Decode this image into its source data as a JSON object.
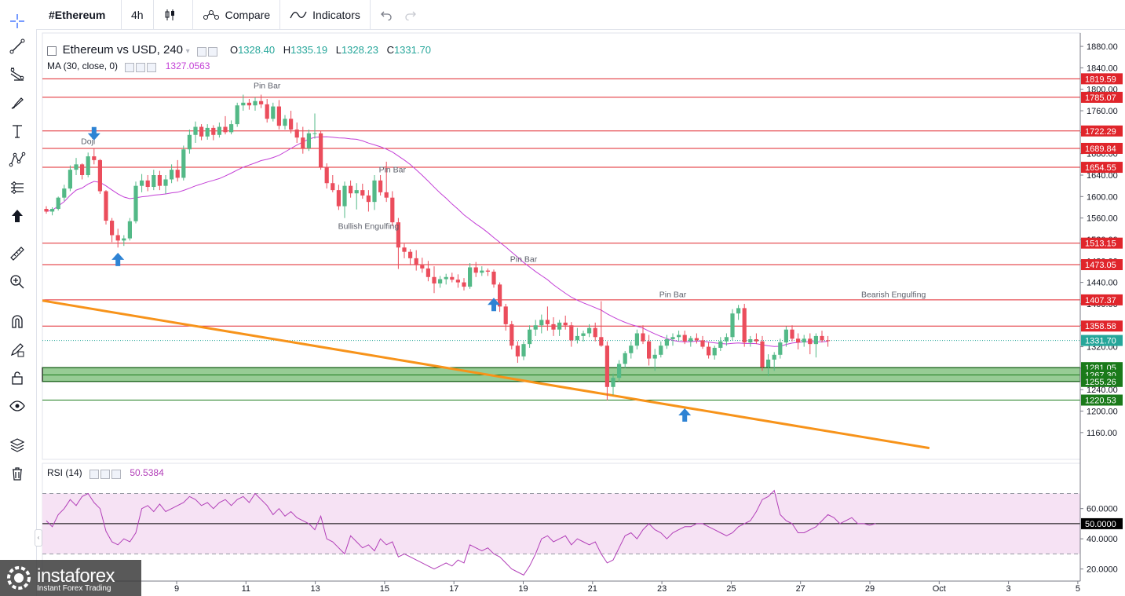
{
  "header": {
    "symbol": "#Ethereum",
    "interval": "4h",
    "compare_label": "Compare",
    "indicators_label": "Indicators"
  },
  "legend": {
    "title": "Ethereum vs USD, 240",
    "open_key": "O",
    "open": "1328.40",
    "high_key": "H",
    "high": "1335.19",
    "low_key": "L",
    "low": "1328.23",
    "close_key": "C",
    "close": "1331.70",
    "ma_label": "MA (30, close, 0)",
    "ma_value": "1327.0563",
    "rsi_label": "RSI (14)",
    "rsi_value": "50.5384"
  },
  "watermark": {
    "name": "instaforex",
    "tagline": "Instant Forex Trading"
  },
  "toolbar_icons": [
    "crosshair-icon",
    "trend-line-icon",
    "fib-icon",
    "brush-icon",
    "text-icon",
    "pattern-icon",
    "prediction-icon",
    "arrow-up-icon",
    "ruler-icon",
    "zoom-icon",
    "magnet-icon",
    "lock-drawing-icon",
    "lock-icon",
    "eye-icon",
    "layers-icon",
    "trash-icon"
  ],
  "colors": {
    "up": "#26a69a",
    "up_candle": "#53b987",
    "down": "#eb4d5c",
    "ma": "#c33fd6",
    "level": "#e0252b",
    "trend": "#f7931a",
    "zone": "#8cc68a",
    "arrow": "#2e83d4",
    "rsi_line": "#b23fb8",
    "rsi_band": "#f6e2f4"
  },
  "chart_data": {
    "type": "candlestick",
    "title": "Ethereum vs USD, 240",
    "y_ticks": [
      1880,
      1840,
      1800,
      1760,
      1720,
      1680,
      1640,
      1600,
      1560,
      1520,
      1480,
      1440,
      1400,
      1360,
      1320,
      1280,
      1240,
      1200,
      1160
    ],
    "y_tick_labels": [
      "1880.00",
      "1840.00",
      "1800.00",
      "1760.00",
      "1720.00",
      "1680.00",
      "1640.00",
      "1600.00",
      "1560.00",
      "1520.00",
      "1480.00",
      "1440.00",
      "1400.00",
      "1360.00",
      "1320.00",
      "1280.00",
      "1240.00",
      "1200.00",
      "1160.00"
    ],
    "ylim": [
      1110,
      1905
    ],
    "x_ticks": [
      "9",
      "11",
      "13",
      "15",
      "17",
      "19",
      "21",
      "23",
      "25",
      "27",
      "29",
      "Oct",
      "3",
      "5"
    ],
    "levels": [
      {
        "value": 1819.59,
        "label": "1819.59",
        "color": "#e0252b"
      },
      {
        "value": 1785.07,
        "label": "1785.07",
        "color": "#e0252b"
      },
      {
        "value": 1722.29,
        "label": "1722.29",
        "color": "#e0252b"
      },
      {
        "value": 1689.84,
        "label": "1689.84",
        "color": "#e0252b"
      },
      {
        "value": 1654.55,
        "label": "1654.55",
        "color": "#e0252b"
      },
      {
        "value": 1513.15,
        "label": "1513.15",
        "color": "#e0252b"
      },
      {
        "value": 1473.05,
        "label": "1473.05",
        "color": "#e0252b"
      },
      {
        "value": 1407.37,
        "label": "1407.37",
        "color": "#e0252b"
      },
      {
        "value": 1358.58,
        "label": "1358.58",
        "color": "#e0252b"
      },
      {
        "value": 1281.05,
        "label": "1281.05",
        "color": "#1a7a1a"
      },
      {
        "value": 1267.3,
        "label": "1267.30",
        "color": "#1a7a1a"
      },
      {
        "value": 1255.26,
        "label": "1255.26",
        "color": "#1a7a1a"
      },
      {
        "value": 1220.53,
        "label": "1220.53",
        "color": "#1a7a1a"
      }
    ],
    "zone": {
      "from": 1255.26,
      "to": 1281.05
    },
    "last_price": {
      "value": 1331.7,
      "label": "1331.70"
    },
    "trend_line": {
      "start": {
        "t": 0,
        "v": 1406
      },
      "end": {
        "t": 148,
        "v": 1131
      }
    },
    "annotations": [
      {
        "text": "Doji",
        "t": 7,
        "v": 1698
      },
      {
        "text": "Pin Bar",
        "t": 37,
        "v": 1802
      },
      {
        "text": "Pin Bar",
        "t": 58,
        "v": 1645
      },
      {
        "text": "Bullish Engulfing",
        "t": 54,
        "v": 1540
      },
      {
        "text": "Pin Bar",
        "t": 80,
        "v": 1478
      },
      {
        "text": "Pin Bar",
        "t": 105,
        "v": 1412
      },
      {
        "text": "Bearish Engulfing",
        "t": 142,
        "v": 1412
      }
    ],
    "arrows": [
      {
        "dir": "down",
        "t": 8,
        "v": 1718
      },
      {
        "dir": "up",
        "t": 12,
        "v": 1482
      },
      {
        "dir": "up",
        "t": 75,
        "v": 1398
      },
      {
        "dir": "up",
        "t": 107,
        "v": 1192
      }
    ],
    "candles": [
      [
        1577,
        1582,
        1568,
        1572
      ],
      [
        1572,
        1580,
        1565,
        1577
      ],
      [
        1577,
        1600,
        1574,
        1598
      ],
      [
        1598,
        1622,
        1592,
        1615
      ],
      [
        1615,
        1658,
        1610,
        1650
      ],
      [
        1650,
        1672,
        1640,
        1660
      ],
      [
        1660,
        1662,
        1632,
        1640
      ],
      [
        1640,
        1682,
        1636,
        1675
      ],
      [
        1675,
        1690,
        1660,
        1668
      ],
      [
        1668,
        1670,
        1605,
        1610
      ],
      [
        1610,
        1612,
        1548,
        1555
      ],
      [
        1555,
        1560,
        1515,
        1528
      ],
      [
        1528,
        1540,
        1505,
        1518
      ],
      [
        1518,
        1528,
        1508,
        1522
      ],
      [
        1522,
        1560,
        1518,
        1554
      ],
      [
        1554,
        1628,
        1550,
        1620
      ],
      [
        1620,
        1642,
        1608,
        1630
      ],
      [
        1630,
        1640,
        1610,
        1618
      ],
      [
        1618,
        1650,
        1612,
        1640
      ],
      [
        1640,
        1648,
        1612,
        1620
      ],
      [
        1620,
        1640,
        1605,
        1632
      ],
      [
        1632,
        1660,
        1625,
        1650
      ],
      [
        1650,
        1668,
        1628,
        1635
      ],
      [
        1635,
        1695,
        1630,
        1688
      ],
      [
        1688,
        1725,
        1680,
        1715
      ],
      [
        1715,
        1740,
        1700,
        1730
      ],
      [
        1730,
        1735,
        1705,
        1712
      ],
      [
        1712,
        1735,
        1706,
        1728
      ],
      [
        1728,
        1733,
        1705,
        1715
      ],
      [
        1715,
        1738,
        1710,
        1730
      ],
      [
        1730,
        1750,
        1716,
        1720
      ],
      [
        1720,
        1742,
        1716,
        1735
      ],
      [
        1735,
        1775,
        1730,
        1770
      ],
      [
        1770,
        1790,
        1760,
        1775
      ],
      [
        1775,
        1782,
        1762,
        1770
      ],
      [
        1770,
        1785,
        1760,
        1778
      ],
      [
        1778,
        1790,
        1765,
        1772
      ],
      [
        1772,
        1782,
        1738,
        1745
      ],
      [
        1745,
        1775,
        1740,
        1768
      ],
      [
        1768,
        1780,
        1725,
        1732
      ],
      [
        1732,
        1752,
        1725,
        1745
      ],
      [
        1745,
        1760,
        1718,
        1725
      ],
      [
        1725,
        1738,
        1700,
        1710
      ],
      [
        1710,
        1730,
        1680,
        1690
      ],
      [
        1690,
        1725,
        1685,
        1718
      ],
      [
        1718,
        1755,
        1708,
        1718
      ],
      [
        1718,
        1722,
        1650,
        1655
      ],
      [
        1655,
        1662,
        1615,
        1625
      ],
      [
        1625,
        1640,
        1608,
        1612
      ],
      [
        1612,
        1622,
        1575,
        1582
      ],
      [
        1582,
        1628,
        1560,
        1620
      ],
      [
        1620,
        1630,
        1598,
        1606
      ],
      [
        1606,
        1625,
        1576,
        1612
      ],
      [
        1612,
        1624,
        1596,
        1602
      ],
      [
        1602,
        1612,
        1572,
        1590
      ],
      [
        1590,
        1640,
        1575,
        1630
      ],
      [
        1630,
        1640,
        1602,
        1608
      ],
      [
        1608,
        1665,
        1590,
        1598
      ],
      [
        1598,
        1610,
        1545,
        1552
      ],
      [
        1552,
        1560,
        1465,
        1505
      ],
      [
        1505,
        1512,
        1485,
        1497
      ],
      [
        1497,
        1502,
        1472,
        1485
      ],
      [
        1485,
        1500,
        1462,
        1472
      ],
      [
        1472,
        1486,
        1458,
        1466
      ],
      [
        1466,
        1480,
        1442,
        1450
      ],
      [
        1450,
        1470,
        1420,
        1438
      ],
      [
        1438,
        1452,
        1430,
        1446
      ],
      [
        1446,
        1456,
        1436,
        1450
      ],
      [
        1450,
        1458,
        1440,
        1445
      ],
      [
        1445,
        1455,
        1430,
        1440
      ],
      [
        1440,
        1448,
        1425,
        1432
      ],
      [
        1432,
        1476,
        1428,
        1468
      ],
      [
        1468,
        1478,
        1450,
        1458
      ],
      [
        1458,
        1470,
        1452,
        1462
      ],
      [
        1462,
        1466,
        1452,
        1460
      ],
      [
        1460,
        1464,
        1430,
        1436
      ],
      [
        1436,
        1440,
        1385,
        1395
      ],
      [
        1395,
        1400,
        1350,
        1362
      ],
      [
        1362,
        1368,
        1315,
        1322
      ],
      [
        1322,
        1330,
        1290,
        1302
      ],
      [
        1302,
        1330,
        1295,
        1325
      ],
      [
        1325,
        1360,
        1318,
        1352
      ],
      [
        1352,
        1370,
        1340,
        1360
      ],
      [
        1360,
        1380,
        1345,
        1370
      ],
      [
        1370,
        1395,
        1350,
        1362
      ],
      [
        1362,
        1375,
        1340,
        1352
      ],
      [
        1352,
        1370,
        1340,
        1365
      ],
      [
        1365,
        1378,
        1352,
        1360
      ],
      [
        1360,
        1366,
        1320,
        1332
      ],
      [
        1332,
        1355,
        1326,
        1340
      ],
      [
        1340,
        1350,
        1330,
        1345
      ],
      [
        1345,
        1362,
        1338,
        1355
      ],
      [
        1355,
        1365,
        1330,
        1338
      ],
      [
        1338,
        1405,
        1320,
        1322
      ],
      [
        1322,
        1330,
        1220,
        1245
      ],
      [
        1245,
        1270,
        1230,
        1262
      ],
      [
        1262,
        1295,
        1255,
        1288
      ],
      [
        1288,
        1312,
        1280,
        1308
      ],
      [
        1308,
        1330,
        1298,
        1322
      ],
      [
        1322,
        1352,
        1315,
        1345
      ],
      [
        1345,
        1360,
        1325,
        1330
      ],
      [
        1330,
        1342,
        1285,
        1298
      ],
      [
        1298,
        1316,
        1275,
        1305
      ],
      [
        1305,
        1330,
        1300,
        1322
      ],
      [
        1322,
        1342,
        1316,
        1334
      ],
      [
        1334,
        1345,
        1322,
        1338
      ],
      [
        1338,
        1350,
        1330,
        1342
      ],
      [
        1342,
        1350,
        1325,
        1330
      ],
      [
        1330,
        1340,
        1320,
        1336
      ],
      [
        1336,
        1345,
        1326,
        1332
      ],
      [
        1332,
        1340,
        1316,
        1320
      ],
      [
        1320,
        1328,
        1298,
        1304
      ],
      [
        1304,
        1322,
        1296,
        1318
      ],
      [
        1318,
        1338,
        1312,
        1330
      ],
      [
        1330,
        1345,
        1322,
        1338
      ],
      [
        1338,
        1390,
        1332,
        1382
      ],
      [
        1382,
        1398,
        1370,
        1392
      ],
      [
        1392,
        1400,
        1320,
        1328
      ],
      [
        1328,
        1340,
        1320,
        1334
      ],
      [
        1334,
        1345,
        1325,
        1330
      ],
      [
        1330,
        1340,
        1275,
        1282
      ],
      [
        1282,
        1306,
        1265,
        1296
      ],
      [
        1296,
        1310,
        1275,
        1305
      ],
      [
        1305,
        1335,
        1298,
        1328
      ],
      [
        1328,
        1358,
        1320,
        1352
      ],
      [
        1352,
        1360,
        1330,
        1335
      ],
      [
        1335,
        1345,
        1315,
        1328
      ],
      [
        1328,
        1342,
        1320,
        1335
      ],
      [
        1335,
        1345,
        1306,
        1325
      ],
      [
        1325,
        1345,
        1300,
        1340
      ],
      [
        1340,
        1350,
        1328,
        1332
      ],
      [
        1332,
        1340,
        1320,
        1331
      ]
    ],
    "rsi": {
      "label": "RSI (14)",
      "ylim": [
        12,
        90
      ],
      "upper": 70,
      "middle": 50,
      "lower": 30,
      "y_ticks": [
        60,
        40,
        20
      ],
      "y_tick_labels": [
        "60.0000",
        "40.0000",
        "20.0000"
      ],
      "mid_label": "50.0000",
      "values": [
        52,
        48,
        56,
        60,
        66,
        62,
        68,
        70,
        64,
        60,
        45,
        38,
        36,
        40,
        38,
        44,
        60,
        62,
        58,
        63,
        58,
        60,
        62,
        64,
        68,
        66,
        62,
        64,
        60,
        64,
        66,
        62,
        66,
        68,
        64,
        70,
        66,
        62,
        56,
        60,
        55,
        58,
        54,
        52,
        50,
        46,
        55,
        40,
        38,
        34,
        30,
        42,
        38,
        34,
        36,
        32,
        40,
        36,
        38,
        28,
        30,
        28,
        26,
        24,
        22,
        20,
        22,
        24,
        22,
        26,
        24,
        36,
        34,
        32,
        34,
        30,
        28,
        24,
        20,
        18,
        16,
        22,
        30,
        40,
        42,
        38,
        40,
        42,
        36,
        40,
        38,
        36,
        38,
        30,
        24,
        26,
        34,
        42,
        44,
        40,
        46,
        50,
        46,
        44,
        40,
        44,
        46,
        48,
        48,
        50,
        50,
        48,
        46,
        44,
        42,
        44,
        48,
        50,
        52,
        58,
        66,
        68,
        72,
        56,
        52,
        50,
        44,
        44,
        46,
        48,
        52,
        56,
        54,
        50,
        52,
        54,
        50,
        50,
        49,
        50
      ]
    }
  }
}
